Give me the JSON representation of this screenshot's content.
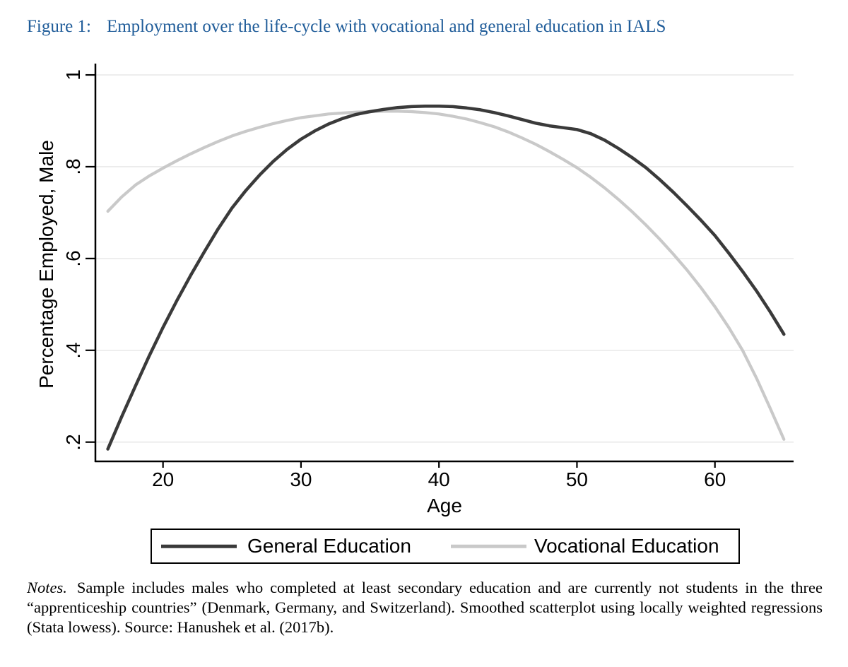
{
  "figure": {
    "label": "Figure 1:",
    "caption": "Employment over the life-cycle with vocational and general education in IALS",
    "accent_color": "#1f5c99"
  },
  "chart_data": {
    "type": "line",
    "title": "Employment over the life-cycle with vocational and general education in IALS",
    "xlabel": "Age",
    "ylabel": "Percentage Employed, Male",
    "xlim": [
      15.1,
      65.7
    ],
    "ylim": [
      0.158,
      1.017
    ],
    "grid": "horizontal",
    "grid_color": "#e9e9e9",
    "axis_color": "#000000",
    "legend_position": "bottom",
    "x_ticks": [
      20,
      30,
      40,
      50,
      60
    ],
    "y_ticks": [
      {
        "value": 1.0,
        "label": "1"
      },
      {
        "value": 0.8,
        "label": ".8"
      },
      {
        "value": 0.6,
        "label": ".6"
      },
      {
        "value": 0.4,
        "label": ".4"
      },
      {
        "value": 0.2,
        "label": ".2"
      }
    ],
    "x": [
      16,
      17,
      18,
      19,
      20,
      21,
      22,
      23,
      24,
      25,
      26,
      27,
      28,
      29,
      30,
      31,
      32,
      33,
      34,
      35,
      36,
      37,
      38,
      39,
      40,
      41,
      42,
      43,
      44,
      45,
      46,
      47,
      48,
      49,
      50,
      51,
      52,
      53,
      54,
      55,
      56,
      57,
      58,
      59,
      60,
      61,
      62,
      63,
      64,
      65
    ],
    "series": [
      {
        "name": "General Education",
        "color": "#3a3a3a",
        "width": 4.5,
        "values": [
          0.185,
          0.255,
          0.322,
          0.388,
          0.45,
          0.508,
          0.563,
          0.615,
          0.665,
          0.71,
          0.748,
          0.782,
          0.812,
          0.838,
          0.86,
          0.878,
          0.893,
          0.905,
          0.914,
          0.92,
          0.925,
          0.929,
          0.931,
          0.932,
          0.932,
          0.931,
          0.928,
          0.924,
          0.918,
          0.911,
          0.903,
          0.895,
          0.889,
          0.885,
          0.881,
          0.872,
          0.858,
          0.84,
          0.82,
          0.798,
          0.772,
          0.744,
          0.714,
          0.683,
          0.65,
          0.612,
          0.572,
          0.53,
          0.484,
          0.435
        ]
      },
      {
        "name": "Vocational Education",
        "color": "#c9c9c9",
        "width": 4.2,
        "values": [
          0.703,
          0.734,
          0.76,
          0.78,
          0.797,
          0.813,
          0.828,
          0.842,
          0.855,
          0.867,
          0.877,
          0.886,
          0.894,
          0.901,
          0.907,
          0.911,
          0.915,
          0.917,
          0.919,
          0.92,
          0.921,
          0.921,
          0.92,
          0.918,
          0.915,
          0.91,
          0.904,
          0.896,
          0.887,
          0.876,
          0.863,
          0.849,
          0.833,
          0.816,
          0.798,
          0.777,
          0.754,
          0.729,
          0.702,
          0.673,
          0.642,
          0.609,
          0.574,
          0.536,
          0.495,
          0.45,
          0.4,
          0.34,
          0.274,
          0.206
        ]
      }
    ]
  },
  "notes": {
    "label": "Notes.",
    "text": "Sample includes males who completed at least secondary education and are currently not students in the three “apprenticeship countries” (Denmark, Germany, and Switzerland). Smoothed scatterplot using locally weighted regressions (Stata lowess). Source: Hanushek et al. (2017b)."
  }
}
